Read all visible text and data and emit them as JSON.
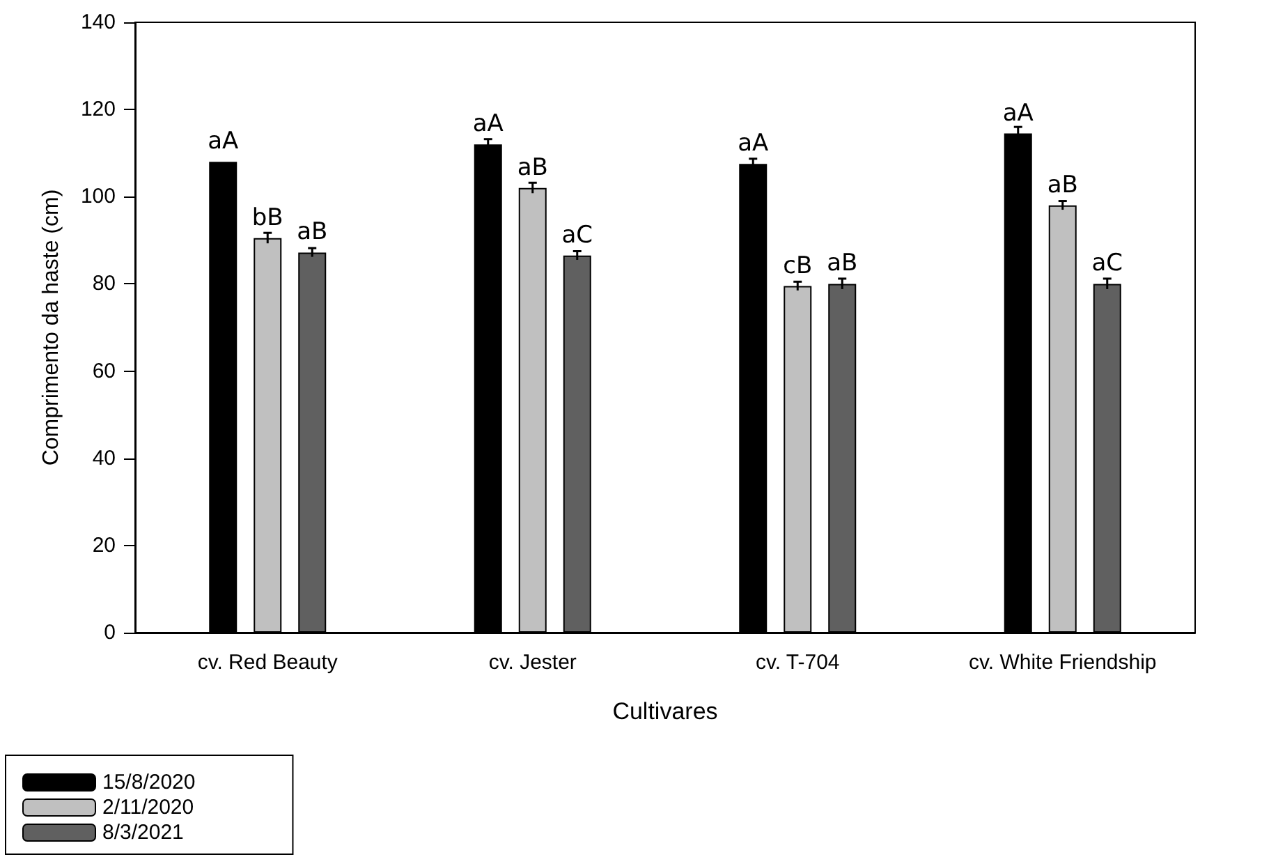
{
  "chart_data": {
    "type": "bar",
    "xlabel": "Cultivares",
    "ylabel": "Comprimento da haste (cm)",
    "categories": [
      "cv. Red Beauty",
      "cv. Jester",
      "cv. T-704",
      "cv. White Friendship"
    ],
    "series": [
      {
        "name": "15/8/2020",
        "color": "#000000",
        "values": [
          108,
          112,
          107.5,
          114.5
        ],
        "errors": [
          null,
          1.2,
          1.2,
          1.5
        ],
        "value_labels": [
          "aA",
          "aA",
          "aA",
          "aA"
        ]
      },
      {
        "name": "2/11/2020",
        "color": "#c0c0c0",
        "values": [
          90.5,
          102,
          79.5,
          98
        ],
        "errors": [
          1.2,
          1.2,
          1.0,
          1.0
        ],
        "value_labels": [
          "bB",
          "aB",
          "cB",
          "aB"
        ]
      },
      {
        "name": "8/3/2021",
        "color": "#606060",
        "values": [
          87.2,
          86.5,
          80,
          80
        ],
        "errors": [
          1.0,
          1.0,
          1.2,
          1.2
        ],
        "value_labels": [
          "aB",
          "aC",
          "aB",
          "aC"
        ]
      }
    ],
    "ylim": [
      0,
      140
    ],
    "yticks": [
      0,
      20,
      40,
      60,
      80,
      100,
      120,
      140
    ],
    "legend": "bottom left"
  }
}
